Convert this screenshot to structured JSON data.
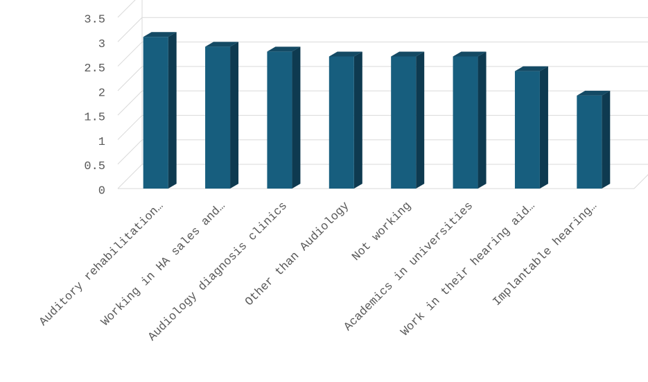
{
  "chart_data": {
    "type": "bar3d",
    "categories": [
      "Auditory rehabilitation…",
      "Working in HA sales and…",
      "Audiology diagnosis clinics",
      "Other than Audiology",
      "Not working",
      "Academics in universities",
      "Work in their hearing aid…",
      "Implantable hearing…"
    ],
    "values": [
      3.1,
      2.9,
      2.8,
      2.7,
      2.7,
      2.7,
      2.4,
      1.9
    ],
    "color": "#175e7e",
    "ylim": [
      0,
      3.5
    ],
    "yticks": [
      0,
      0.5,
      1,
      1.5,
      2,
      2.5,
      3,
      3.5
    ],
    "grid": true
  }
}
